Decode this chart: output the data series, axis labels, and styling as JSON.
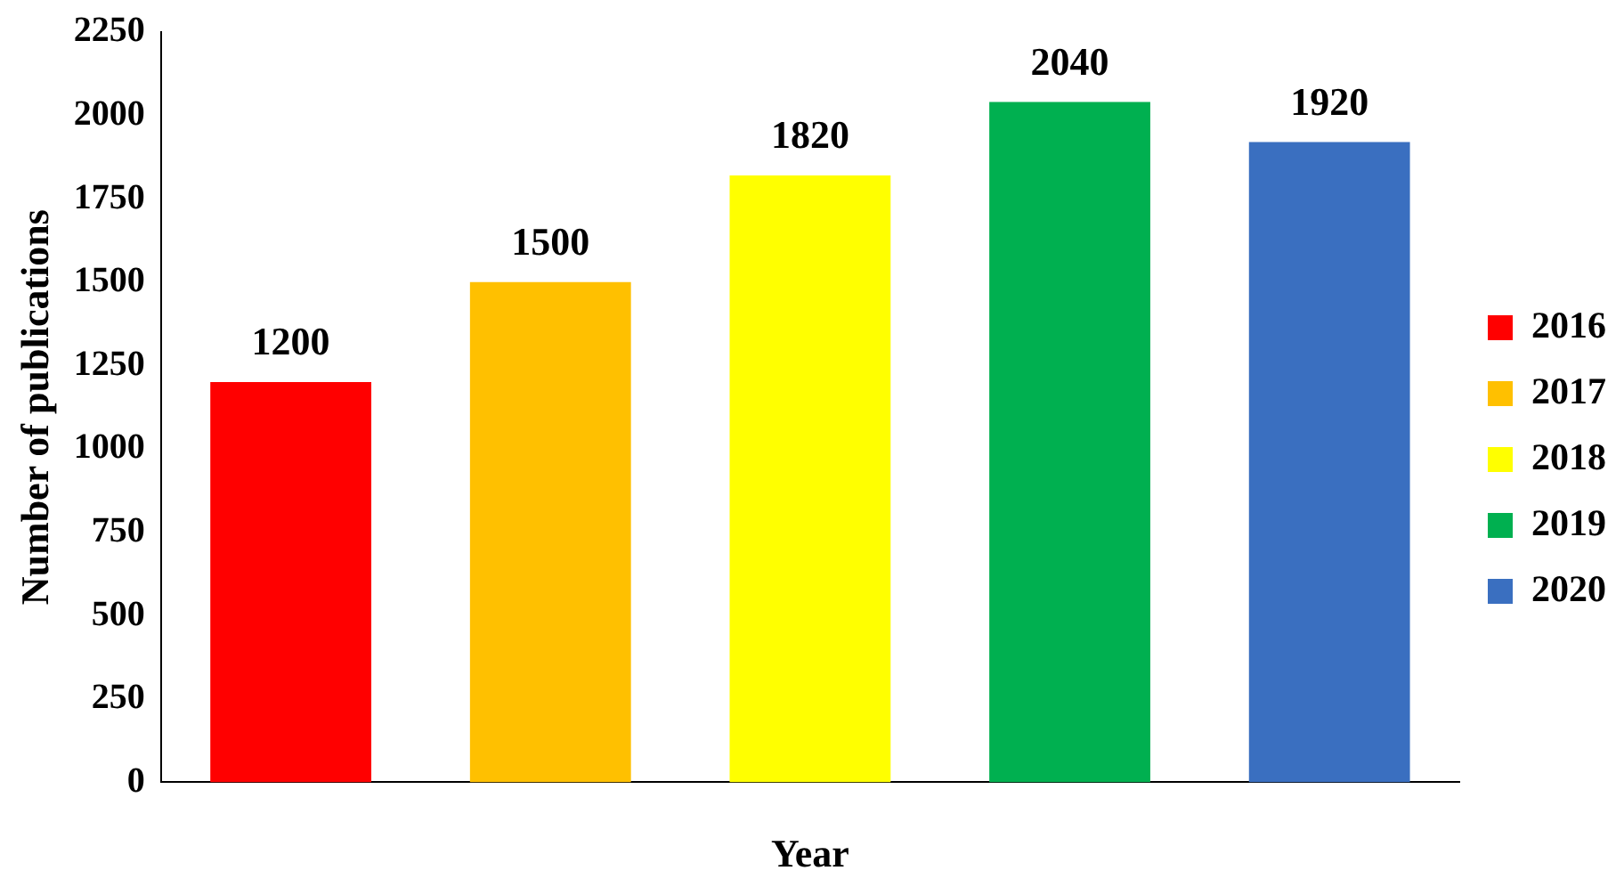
{
  "chart_data": {
    "type": "bar",
    "xlabel": "Year",
    "ylabel": "Number of publications",
    "categories": [
      null,
      null,
      null,
      null,
      null
    ],
    "series": [
      {
        "name": "2016",
        "color": "#ff0000",
        "values": [
          1200,
          null,
          null,
          null,
          null
        ]
      },
      {
        "name": "2017",
        "color": "#ffc000",
        "values": [
          null,
          1500,
          null,
          null,
          null
        ]
      },
      {
        "name": "2018",
        "color": "#ffff00",
        "values": [
          null,
          null,
          1820,
          null,
          null
        ]
      },
      {
        "name": "2019",
        "color": "#00b050",
        "values": [
          null,
          null,
          null,
          2040,
          null
        ]
      },
      {
        "name": "2020",
        "color": "#3a6fc0",
        "values": [
          null,
          null,
          null,
          null,
          1920
        ]
      }
    ],
    "ylim": [
      0,
      2250
    ],
    "yticks": [
      0,
      250,
      500,
      750,
      1000,
      1250,
      1500,
      1750,
      2000,
      2250
    ],
    "data_labels": true,
    "legend": "right",
    "grid": false
  }
}
